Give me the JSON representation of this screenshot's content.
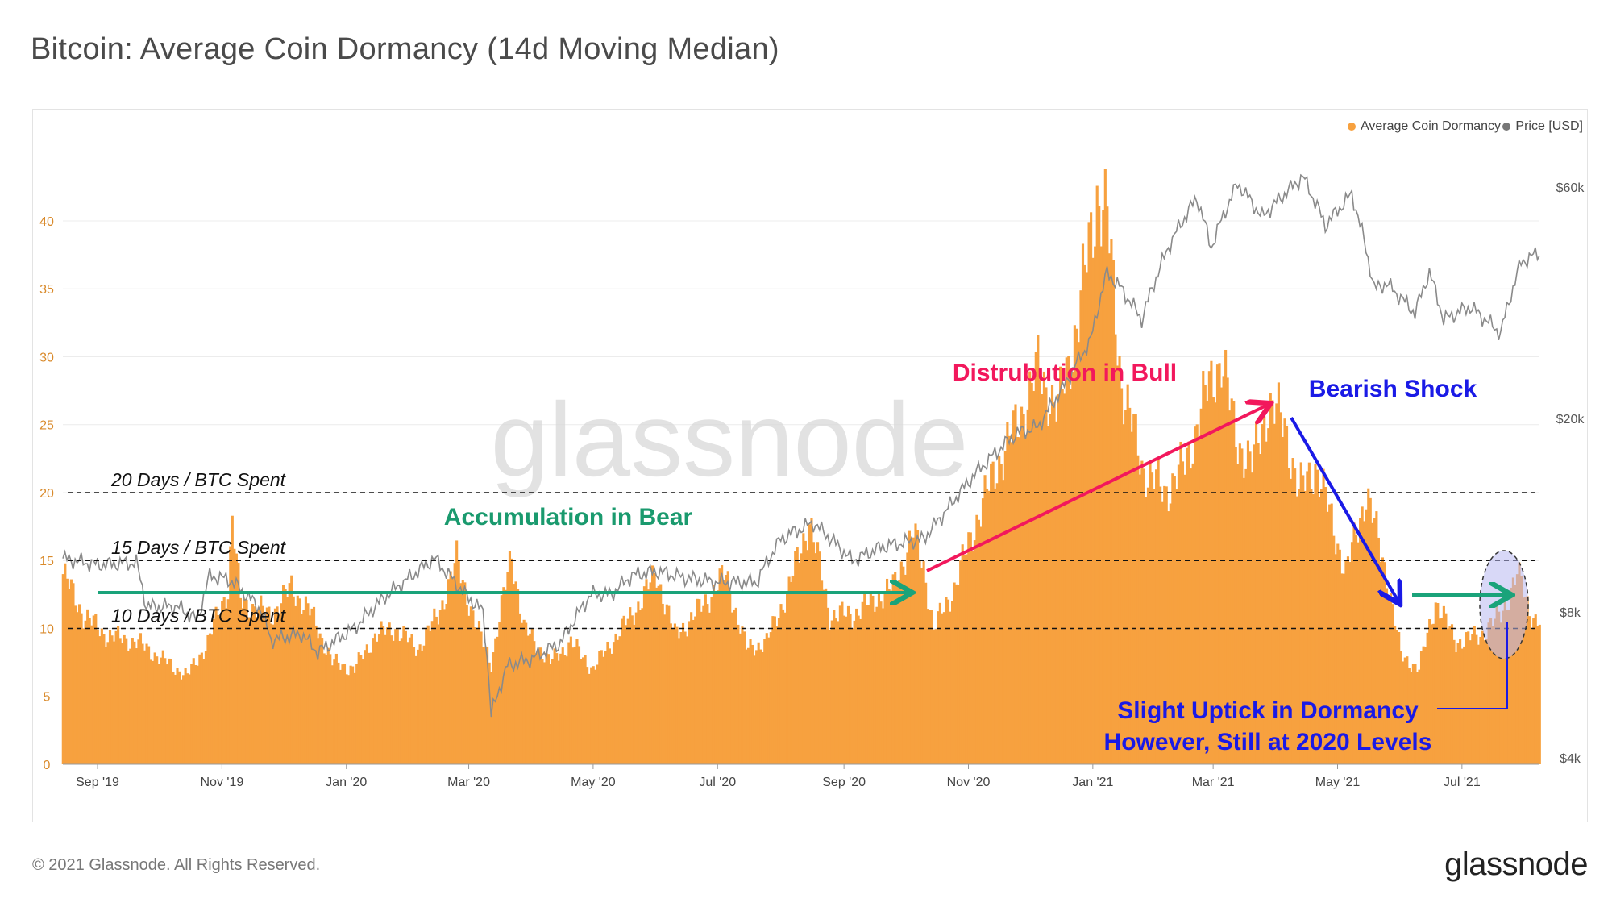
{
  "title": "Bitcoin: Average Coin Dormancy (14d Moving Median)",
  "footer": "© 2021 Glassnode. All Rights Reserved.",
  "brand": "glassnode",
  "watermark": "glassnode",
  "colors": {
    "bars": "#f7a13f",
    "price": "#8a8a8a",
    "green": "#1aa37a",
    "red": "#f2185c",
    "blue": "#1a1ae6",
    "ellipse_fill": "#b8b8f0"
  },
  "chart_data": {
    "type": "bar",
    "legend": [
      {
        "name": "Average Coin Dormancy",
        "color": "#f7a13f"
      },
      {
        "name": "Price [USD]",
        "color": "#777777"
      }
    ],
    "y_left_ticks": [
      "0",
      "5",
      "10",
      "15",
      "20",
      "25",
      "30",
      "35",
      "40"
    ],
    "y_left_range": [
      0,
      43.5
    ],
    "y_right_ticks": [
      "$4k",
      "$8k",
      "$20k",
      "$60k"
    ],
    "y_right_values": [
      4000,
      8000,
      20000,
      60000
    ],
    "y_right_scale": "log",
    "x_ticks": [
      "Sep '19",
      "Nov '19",
      "Jan '20",
      "Mar '20",
      "May '20",
      "Jul '20",
      "Sep '20",
      "Nov '20",
      "Jan '21",
      "Mar '21",
      "May '21",
      "Jul '21"
    ],
    "x_tick_dates": [
      "2019-09-01",
      "2019-11-01",
      "2020-01-01",
      "2020-03-01",
      "2020-05-01",
      "2020-07-01",
      "2020-09-01",
      "2020-11-01",
      "2021-01-01",
      "2021-03-01",
      "2021-05-01",
      "2021-07-01"
    ],
    "x_range": [
      "2019-08-15",
      "2021-08-08"
    ],
    "grid": "horizontal",
    "legend_position": "top-right",
    "dormancy_keypoints": [
      [
        "2019-08-15",
        14
      ],
      [
        "2019-08-25",
        11
      ],
      [
        "2019-09-05",
        9.5
      ],
      [
        "2019-09-20",
        9
      ],
      [
        "2019-10-05",
        7.5
      ],
      [
        "2019-10-15",
        6.5
      ],
      [
        "2019-10-25",
        9
      ],
      [
        "2019-11-04",
        13
      ],
      [
        "2019-11-06",
        18
      ],
      [
        "2019-11-10",
        12
      ],
      [
        "2019-11-25",
        11
      ],
      [
        "2019-12-05",
        13
      ],
      [
        "2019-12-15",
        11
      ],
      [
        "2019-12-25",
        7.5
      ],
      [
        "2020-01-05",
        7
      ],
      [
        "2020-01-15",
        9.5
      ],
      [
        "2020-01-25",
        10
      ],
      [
        "2020-02-05",
        8.5
      ],
      [
        "2020-02-15",
        11
      ],
      [
        "2020-02-24",
        15
      ],
      [
        "2020-03-05",
        10
      ],
      [
        "2020-03-12",
        7.5
      ],
      [
        "2020-03-22",
        15.5
      ],
      [
        "2020-03-28",
        10
      ],
      [
        "2020-04-10",
        7.5
      ],
      [
        "2020-04-20",
        9
      ],
      [
        "2020-05-01",
        7
      ],
      [
        "2020-05-10",
        9
      ],
      [
        "2020-05-20",
        11
      ],
      [
        "2020-06-01",
        14
      ],
      [
        "2020-06-10",
        9.5
      ],
      [
        "2020-06-20",
        11
      ],
      [
        "2020-07-05",
        14
      ],
      [
        "2020-07-15",
        8.5
      ],
      [
        "2020-07-25",
        9
      ],
      [
        "2020-08-05",
        13
      ],
      [
        "2020-08-15",
        18
      ],
      [
        "2020-08-25",
        11
      ],
      [
        "2020-09-05",
        11
      ],
      [
        "2020-09-15",
        12
      ],
      [
        "2020-09-25",
        13
      ],
      [
        "2020-10-05",
        17
      ],
      [
        "2020-10-10",
        14.5
      ],
      [
        "2020-10-15",
        10
      ],
      [
        "2020-10-25",
        13
      ],
      [
        "2020-11-05",
        18
      ],
      [
        "2020-11-15",
        22
      ],
      [
        "2020-11-25",
        25
      ],
      [
        "2020-12-05",
        29
      ],
      [
        "2020-12-15",
        26
      ],
      [
        "2020-12-25",
        33
      ],
      [
        "2021-01-03",
        42
      ],
      [
        "2021-01-08",
        40
      ],
      [
        "2021-01-15",
        28
      ],
      [
        "2021-01-25",
        22
      ],
      [
        "2021-02-05",
        20
      ],
      [
        "2021-02-15",
        22
      ],
      [
        "2021-02-25",
        27
      ],
      [
        "2021-03-05",
        30
      ],
      [
        "2021-03-12",
        24
      ],
      [
        "2021-03-20",
        22
      ],
      [
        "2021-03-28",
        26.5
      ],
      [
        "2021-04-05",
        25
      ],
      [
        "2021-04-12",
        20
      ],
      [
        "2021-04-20",
        22
      ],
      [
        "2021-04-28",
        18
      ],
      [
        "2021-05-05",
        14
      ],
      [
        "2021-05-15",
        20
      ],
      [
        "2021-05-25",
        14
      ],
      [
        "2021-06-01",
        8
      ],
      [
        "2021-06-10",
        7
      ],
      [
        "2021-06-18",
        12
      ],
      [
        "2021-06-28",
        9
      ],
      [
        "2021-07-10",
        9.5
      ],
      [
        "2021-07-20",
        11
      ],
      [
        "2021-07-28",
        14
      ],
      [
        "2021-08-04",
        11
      ],
      [
        "2021-08-08",
        10.5
      ]
    ],
    "price_keypoints": [
      [
        "2019-08-15",
        10300
      ],
      [
        "2019-09-01",
        10000
      ],
      [
        "2019-09-20",
        10100
      ],
      [
        "2019-09-25",
        8200
      ],
      [
        "2019-10-10",
        8200
      ],
      [
        "2019-10-20",
        7700
      ],
      [
        "2019-10-26",
        9500
      ],
      [
        "2019-11-05",
        9300
      ],
      [
        "2019-11-20",
        8100
      ],
      [
        "2019-11-25",
        7000
      ],
      [
        "2019-12-10",
        7200
      ],
      [
        "2019-12-18",
        6600
      ],
      [
        "2020-01-05",
        7400
      ],
      [
        "2020-01-20",
        8600
      ],
      [
        "2020-02-01",
        9400
      ],
      [
        "2020-02-13",
        10300
      ],
      [
        "2020-02-28",
        8700
      ],
      [
        "2020-03-08",
        8000
      ],
      [
        "2020-03-12",
        4900
      ],
      [
        "2020-03-20",
        6200
      ],
      [
        "2020-04-01",
        6400
      ],
      [
        "2020-04-15",
        6900
      ],
      [
        "2020-04-30",
        8700
      ],
      [
        "2020-05-10",
        8700
      ],
      [
        "2020-05-20",
        9500
      ],
      [
        "2020-06-01",
        9700
      ],
      [
        "2020-06-15",
        9400
      ],
      [
        "2020-07-01",
        9200
      ],
      [
        "2020-07-20",
        9200
      ],
      [
        "2020-08-01",
        11300
      ],
      [
        "2020-08-17",
        12200
      ],
      [
        "2020-09-05",
        10200
      ],
      [
        "2020-09-20",
        10900
      ],
      [
        "2020-10-10",
        11300
      ],
      [
        "2020-10-21",
        12900
      ],
      [
        "2020-11-05",
        15500
      ],
      [
        "2020-11-25",
        18700
      ],
      [
        "2020-12-05",
        19200
      ],
      [
        "2020-12-17",
        23000
      ],
      [
        "2020-12-31",
        29000
      ],
      [
        "2021-01-08",
        40000
      ],
      [
        "2021-01-15",
        37000
      ],
      [
        "2021-01-25",
        32000
      ],
      [
        "2021-02-08",
        46000
      ],
      [
        "2021-02-21",
        57000
      ],
      [
        "2021-02-28",
        45000
      ],
      [
        "2021-03-13",
        61000
      ],
      [
        "2021-03-25",
        52000
      ],
      [
        "2021-04-14",
        63000
      ],
      [
        "2021-04-25",
        50000
      ],
      [
        "2021-05-08",
        58000
      ],
      [
        "2021-05-19",
        37000
      ],
      [
        "2021-05-25",
        38000
      ],
      [
        "2021-06-08",
        33000
      ],
      [
        "2021-06-15",
        40000
      ],
      [
        "2021-06-22",
        32000
      ],
      [
        "2021-07-05",
        34000
      ],
      [
        "2021-07-20",
        30000
      ],
      [
        "2021-07-30",
        42000
      ],
      [
        "2021-08-08",
        44000
      ]
    ],
    "reference_lines": [
      {
        "value": 20,
        "label": "20 Days / BTC Spent"
      },
      {
        "value": 15,
        "label": "15 Days / BTC Spent"
      },
      {
        "value": 10,
        "label": "10 Days / BTC Spent"
      }
    ],
    "annotations": [
      {
        "text": "Accumulation in Bear",
        "color": "#1a9a6e"
      },
      {
        "text": "Distrubution in Bull",
        "color": "#f2185c"
      },
      {
        "text": "Bearish Shock",
        "color": "#1a1ae6"
      },
      {
        "text": "Slight Uptick in Dormancy",
        "color": "#1a1ae6"
      },
      {
        "text": "However, Still at 2020 Levels",
        "color": "#1a1ae6"
      }
    ]
  }
}
